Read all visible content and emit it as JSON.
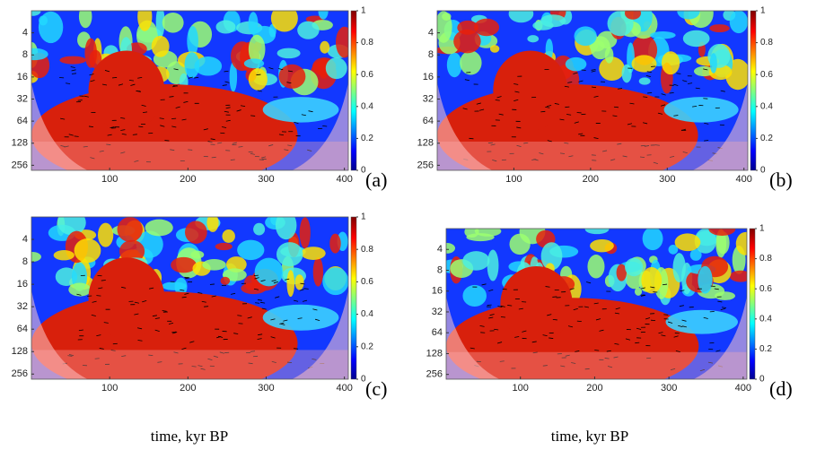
{
  "chart_data": [
    {
      "type": "wavelet-coherence",
      "panel_label": "(a)",
      "xlim": [
        0,
        405
      ],
      "xticks": [
        100,
        200,
        300,
        400
      ],
      "ylim": [
        2,
        300
      ],
      "yscale": "log",
      "yreversed": true,
      "yticks": [
        4,
        8,
        16,
        32,
        64,
        128,
        256
      ],
      "colormap": "jet",
      "clim": [
        0,
        1
      ],
      "cticks": [
        0,
        0.2,
        0.4,
        0.6,
        0.8,
        1
      ]
    },
    {
      "type": "wavelet-coherence",
      "panel_label": "(b)",
      "xlim": [
        0,
        405
      ],
      "xticks": [
        100,
        200,
        300,
        400
      ],
      "ylim": [
        2,
        300
      ],
      "yscale": "log",
      "yreversed": true,
      "yticks": [
        4,
        8,
        16,
        32,
        64,
        128,
        256
      ],
      "colormap": "jet",
      "clim": [
        0,
        1
      ],
      "cticks": [
        0,
        0.2,
        0.4,
        0.6,
        0.8,
        1
      ]
    },
    {
      "type": "wavelet-coherence",
      "panel_label": "(c)",
      "xlabel": "time, kyr BP",
      "xlim": [
        0,
        405
      ],
      "xticks": [
        100,
        200,
        300,
        400
      ],
      "ylim": [
        2,
        300
      ],
      "yscale": "log",
      "yreversed": true,
      "yticks": [
        4,
        8,
        16,
        32,
        64,
        128,
        256
      ],
      "colormap": "jet",
      "clim": [
        0,
        1
      ],
      "cticks": [
        0,
        0.2,
        0.4,
        0.6,
        0.8,
        1
      ]
    },
    {
      "type": "wavelet-coherence",
      "panel_label": "(d)",
      "xlabel": "time, kyr BP",
      "xlim": [
        0,
        405
      ],
      "xticks": [
        100,
        200,
        300,
        400
      ],
      "ylim": [
        2,
        300
      ],
      "yscale": "log",
      "yreversed": true,
      "yticks": [
        4,
        8,
        16,
        32,
        64,
        128,
        256
      ],
      "colormap": "jet",
      "clim": [
        0,
        1
      ],
      "cticks": [
        0,
        0.2,
        0.4,
        0.6,
        0.8,
        1
      ]
    }
  ]
}
